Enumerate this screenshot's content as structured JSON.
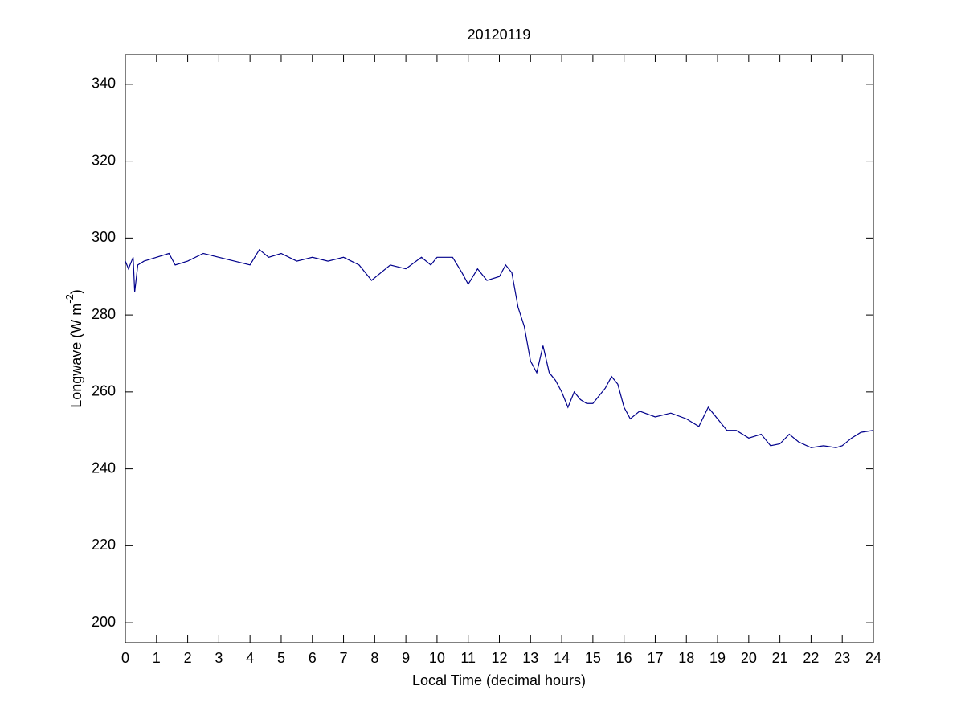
{
  "chart_data": {
    "type": "line",
    "title": "20120119",
    "xlabel": "Local Time (decimal hours)",
    "ylabel_parts": [
      "Longwave (W m",
      "-2",
      ")"
    ],
    "x": [
      0,
      0.1,
      0.25,
      0.3,
      0.4,
      0.6,
      1,
      1.4,
      1.6,
      2,
      2.5,
      3,
      3.5,
      4,
      4.3,
      4.6,
      5,
      5.5,
      6,
      6.5,
      7,
      7.5,
      7.9,
      8.2,
      8.5,
      9,
      9.5,
      9.8,
      10,
      10.5,
      10.8,
      11,
      11.3,
      11.6,
      12,
      12.2,
      12.4,
      12.6,
      12.8,
      13,
      13.2,
      13.4,
      13.6,
      13.8,
      14,
      14.2,
      14.4,
      14.6,
      14.8,
      15,
      15.2,
      15.4,
      15.6,
      15.8,
      16,
      16.2,
      16.5,
      17,
      17.5,
      18,
      18.4,
      18.7,
      19,
      19.3,
      19.6,
      20,
      20.4,
      20.7,
      21,
      21.3,
      21.6,
      22,
      22.4,
      22.8,
      23,
      23.3,
      23.6,
      24
    ],
    "series": [
      {
        "color": "#00008b",
        "values": [
          294,
          292,
          295,
          286,
          293,
          294,
          295,
          296,
          293,
          294,
          296,
          295,
          294,
          293,
          297,
          295,
          296,
          294,
          295,
          294,
          295,
          293,
          289,
          291,
          293,
          292,
          295,
          293,
          295,
          295,
          291,
          288,
          292,
          289,
          290,
          293,
          291,
          282,
          277,
          268,
          265,
          272,
          265,
          263,
          260,
          256,
          260,
          258,
          257,
          257,
          259,
          261,
          264,
          262,
          256,
          253,
          255,
          253.5,
          254.5,
          253,
          251,
          256,
          253,
          250,
          250,
          248,
          249,
          246,
          246.5,
          249,
          247,
          245.5,
          246,
          245.5,
          246,
          248,
          249.5,
          250
        ]
      }
    ],
    "xlim": [
      0,
      24
    ],
    "xticks": [
      0,
      1,
      2,
      3,
      4,
      5,
      6,
      7,
      8,
      9,
      10,
      11,
      12,
      13,
      14,
      15,
      16,
      17,
      18,
      19,
      20,
      21,
      22,
      23,
      24
    ],
    "ylim": [
      194.8,
      347.7
    ],
    "yticks": [
      200,
      220,
      240,
      260,
      280,
      300,
      320,
      340
    ],
    "grid": false
  }
}
